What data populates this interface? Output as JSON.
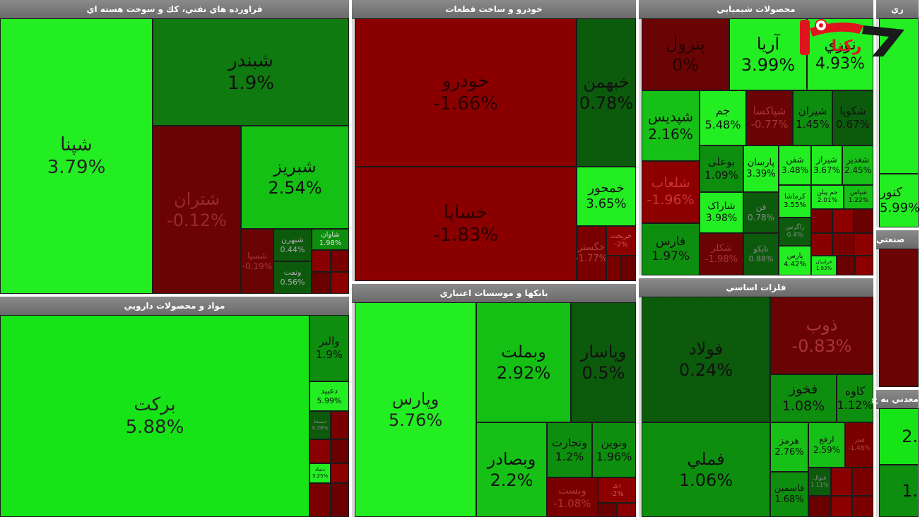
{
  "chart_data": {
    "type": "treemap",
    "colors": {
      "header_bg": "#777777",
      "strong_red": "#7a0000",
      "red": "#8c0000",
      "dark_green": "#0c5a0c",
      "green": "#0c8a0c",
      "bright_green": "#16d816",
      "lime": "#22ee22"
    },
    "sectors": [
      {
        "name": "فراورده هاي نفتي، كك و سوخت هسته اي",
        "tiles": [
          {
            "symbol": "شپنا",
            "change": "3.79%"
          },
          {
            "symbol": "شبندر",
            "change": "1.9%"
          },
          {
            "symbol": "شتران",
            "change": "-0.12%"
          },
          {
            "symbol": "شبریز",
            "change": "2.54%"
          },
          {
            "symbol": "شسپا",
            "change": "-0.19%"
          },
          {
            "symbol": "شبهرن",
            "change": "0.44%"
          },
          {
            "symbol": "شاوان",
            "change": "1.98%"
          },
          {
            "symbol": "ونفت",
            "change": "0.56%"
          }
        ]
      },
      {
        "name": "خودرو و ساخت قطعات",
        "tiles": [
          {
            "symbol": "خودرو",
            "change": "-1.66%"
          },
          {
            "symbol": "خبهمن",
            "change": "0.78%"
          },
          {
            "symbol": "خساپا",
            "change": "-1.83%"
          },
          {
            "symbol": "خمحور",
            "change": "3.65%"
          },
          {
            "symbol": "خگستر",
            "change": "-1.77%"
          },
          {
            "symbol": "خریخت",
            "change": "-2%"
          }
        ]
      },
      {
        "name": "محصولات شيميايي",
        "tiles": [
          {
            "symbol": "پترول",
            "change": "0%"
          },
          {
            "symbol": "آریا",
            "change": "3.99%"
          },
          {
            "symbol": "نوري",
            "change": "4.93%"
          },
          {
            "symbol": "شپدیس",
            "change": "2.16%"
          },
          {
            "symbol": "جم",
            "change": "5.48%"
          },
          {
            "symbol": "شپاکسا",
            "change": "-0.77%"
          },
          {
            "symbol": "شیران",
            "change": "1.45%"
          },
          {
            "symbol": "شکوپا",
            "change": "0.67%"
          },
          {
            "symbol": "شلعاب",
            "change": "-1.96%"
          },
          {
            "symbol": "بوعلی",
            "change": "1.09%"
          },
          {
            "symbol": "پارسان",
            "change": "3.39%"
          },
          {
            "symbol": "شفن",
            "change": "3.48%"
          },
          {
            "symbol": "شیراز",
            "change": "3.67%"
          },
          {
            "symbol": "شغدیر",
            "change": "2.45%"
          },
          {
            "symbol": "شاراک",
            "change": "3.98%"
          },
          {
            "symbol": "فن",
            "change": "0.78%"
          },
          {
            "symbol": "کرماشا",
            "change": "3.55%"
          },
          {
            "symbol": "جم پیلن",
            "change": "2.01%"
          },
          {
            "symbol": "شپاس",
            "change": "1.22%"
          },
          {
            "symbol": "فارس",
            "change": "1.97%"
          },
          {
            "symbol": "شکلر",
            "change": "-1.98%"
          },
          {
            "symbol": "تاپکو",
            "change": "0.88%"
          },
          {
            "symbol": "پارس",
            "change": "4.42%"
          },
          {
            "symbol": "خراسان",
            "change": "1.93%"
          },
          {
            "symbol": "زاگرس",
            "change": "0.4%"
          }
        ]
      },
      {
        "name": "مواد و محصولات دارويي",
        "tiles": [
          {
            "symbol": "برکت",
            "change": "5.88%"
          },
          {
            "symbol": "والبر",
            "change": "1.9%"
          },
          {
            "symbol": "دعبید",
            "change": "5.99%"
          },
          {
            "symbol": "دسبحا",
            "change": "0.28%"
          },
          {
            "symbol": "دتماد",
            "change": "3.25%"
          }
        ]
      },
      {
        "name": "بانكها و موسسات اعتباري",
        "tiles": [
          {
            "symbol": "وپارس",
            "change": "5.76%"
          },
          {
            "symbol": "وبملت",
            "change": "2.92%"
          },
          {
            "symbol": "وپاسار",
            "change": "0.5%"
          },
          {
            "symbol": "وبصادر",
            "change": "2.2%"
          },
          {
            "symbol": "وتجارت",
            "change": "1.2%"
          },
          {
            "symbol": "ونوین",
            "change": "1.96%"
          },
          {
            "symbol": "وبست",
            "change": "-1.08%"
          },
          {
            "symbol": "دی",
            "change": "-2%"
          }
        ]
      },
      {
        "name": "فلزات اساسي",
        "tiles": [
          {
            "symbol": "فولاد",
            "change": "0.24%"
          },
          {
            "symbol": "ذوب",
            "change": "-0.83%"
          },
          {
            "symbol": "فخوز",
            "change": "1.08%"
          },
          {
            "symbol": "کاوه",
            "change": "1.12%"
          },
          {
            "symbol": "فملي",
            "change": "1.06%"
          },
          {
            "symbol": "هرمز",
            "change": "2.76%"
          },
          {
            "symbol": "ارفع",
            "change": "2.59%"
          },
          {
            "symbol": "فجر",
            "change": "-1.48%"
          },
          {
            "symbol": "فنوال",
            "change": "1.11%"
          },
          {
            "symbol": "فاسمین",
            "change": "1.68%"
          }
        ]
      },
      {
        "name": "ري",
        "tiles": [
          {
            "symbol": "کنور",
            "change": "5.99%"
          }
        ]
      },
      {
        "name": "صنعتي",
        "tiles": []
      },
      {
        "name": "معدني به ج",
        "tiles": [
          {
            "symbol": "",
            "change": "2."
          },
          {
            "symbol": "",
            "change": "1."
          }
        ]
      }
    ]
  },
  "logo": {
    "text": "رکنا",
    "icon": "rokna-logo-icon",
    "color": "#e0141e"
  }
}
